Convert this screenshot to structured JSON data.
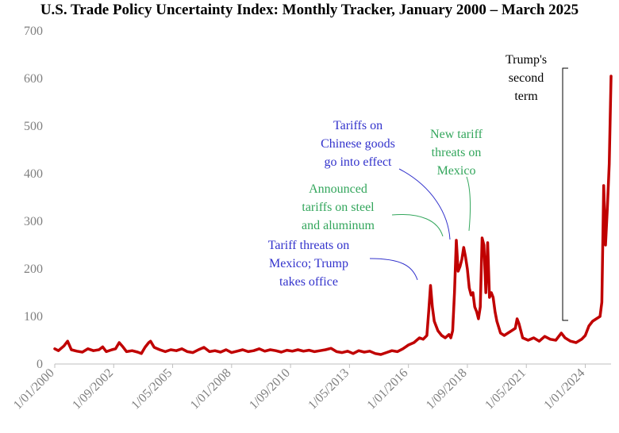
{
  "title": "U.S. Trade Policy Uncertainty Index: Monthly Tracker, January 2000 – March 2025",
  "colors": {
    "line": "#C00000",
    "blue_annotation": "#3333CC",
    "green_annotation": "#33A65C",
    "black_annotation": "#000000",
    "axis_text": "#7F7F7F"
  },
  "chart_data": {
    "type": "line",
    "title": "U.S. Trade Policy Uncertainty Index: Monthly Tracker, January 2000 – March 2025",
    "xlabel": "",
    "ylabel": "",
    "ylim": [
      0,
      700
    ],
    "yticks": [
      0,
      100,
      200,
      300,
      400,
      500,
      600,
      700
    ],
    "xticks": [
      "1/01/2000",
      "1/09/2002",
      "1/05/2005",
      "1/01/2008",
      "1/09/2010",
      "1/05/2013",
      "1/01/2016",
      "1/09/2018",
      "1/05/2021",
      "1/01/2024"
    ],
    "grid": false,
    "legend": "none",
    "series": [
      {
        "points": [
          [
            "2000-01",
            32
          ],
          [
            "2000-03",
            28
          ],
          [
            "2000-06",
            38
          ],
          [
            "2000-08",
            48
          ],
          [
            "2000-10",
            30
          ],
          [
            "2001-01",
            27
          ],
          [
            "2001-04",
            25
          ],
          [
            "2001-07",
            32
          ],
          [
            "2001-10",
            28
          ],
          [
            "2002-01",
            30
          ],
          [
            "2002-03",
            36
          ],
          [
            "2002-05",
            26
          ],
          [
            "2002-08",
            30
          ],
          [
            "2002-10",
            32
          ],
          [
            "2002-12",
            45
          ],
          [
            "2003-02",
            36
          ],
          [
            "2003-04",
            26
          ],
          [
            "2003-07",
            28
          ],
          [
            "2003-10",
            25
          ],
          [
            "2003-12",
            22
          ],
          [
            "2004-02",
            35
          ],
          [
            "2004-04",
            45
          ],
          [
            "2004-05",
            48
          ],
          [
            "2004-07",
            35
          ],
          [
            "2004-10",
            30
          ],
          [
            "2005-01",
            26
          ],
          [
            "2005-04",
            30
          ],
          [
            "2005-07",
            28
          ],
          [
            "2005-10",
            32
          ],
          [
            "2006-01",
            26
          ],
          [
            "2006-04",
            24
          ],
          [
            "2006-07",
            30
          ],
          [
            "2006-10",
            35
          ],
          [
            "2007-01",
            26
          ],
          [
            "2007-04",
            28
          ],
          [
            "2007-07",
            25
          ],
          [
            "2007-10",
            30
          ],
          [
            "2008-01",
            24
          ],
          [
            "2008-04",
            27
          ],
          [
            "2008-07",
            30
          ],
          [
            "2008-10",
            26
          ],
          [
            "2009-01",
            28
          ],
          [
            "2009-04",
            32
          ],
          [
            "2009-07",
            27
          ],
          [
            "2009-10",
            30
          ],
          [
            "2010-01",
            28
          ],
          [
            "2010-04",
            25
          ],
          [
            "2010-07",
            29
          ],
          [
            "2010-10",
            27
          ],
          [
            "2011-01",
            30
          ],
          [
            "2011-04",
            27
          ],
          [
            "2011-07",
            29
          ],
          [
            "2011-10",
            26
          ],
          [
            "2012-01",
            28
          ],
          [
            "2012-04",
            30
          ],
          [
            "2012-07",
            33
          ],
          [
            "2012-10",
            26
          ],
          [
            "2013-01",
            24
          ],
          [
            "2013-04",
            27
          ],
          [
            "2013-07",
            22
          ],
          [
            "2013-10",
            28
          ],
          [
            "2014-01",
            25
          ],
          [
            "2014-04",
            27
          ],
          [
            "2014-07",
            22
          ],
          [
            "2014-10",
            20
          ],
          [
            "2015-01",
            24
          ],
          [
            "2015-04",
            28
          ],
          [
            "2015-07",
            26
          ],
          [
            "2015-10",
            32
          ],
          [
            "2016-01",
            40
          ],
          [
            "2016-04",
            45
          ],
          [
            "2016-07",
            55
          ],
          [
            "2016-09",
            52
          ],
          [
            "2016-11",
            60
          ],
          [
            "2016-12",
            110
          ],
          [
            "2017-01",
            165
          ],
          [
            "2017-02",
            120
          ],
          [
            "2017-03",
            90
          ],
          [
            "2017-05",
            70
          ],
          [
            "2017-07",
            60
          ],
          [
            "2017-09",
            55
          ],
          [
            "2017-11",
            62
          ],
          [
            "2017-12",
            55
          ],
          [
            "2018-01",
            70
          ],
          [
            "2018-02",
            150
          ],
          [
            "2018-03",
            260
          ],
          [
            "2018-04",
            195
          ],
          [
            "2018-05",
            205
          ],
          [
            "2018-06",
            220
          ],
          [
            "2018-07",
            245
          ],
          [
            "2018-08",
            225
          ],
          [
            "2018-09",
            200
          ],
          [
            "2018-10",
            160
          ],
          [
            "2018-11",
            145
          ],
          [
            "2018-12",
            150
          ],
          [
            "2019-01",
            120
          ],
          [
            "2019-02",
            110
          ],
          [
            "2019-03",
            95
          ],
          [
            "2019-04",
            120
          ],
          [
            "2019-05",
            265
          ],
          [
            "2019-06",
            250
          ],
          [
            "2019-07",
            150
          ],
          [
            "2019-08",
            255
          ],
          [
            "2019-09",
            140
          ],
          [
            "2019-10",
            150
          ],
          [
            "2019-11",
            140
          ],
          [
            "2019-12",
            110
          ],
          [
            "2020-01",
            90
          ],
          [
            "2020-03",
            65
          ],
          [
            "2020-05",
            60
          ],
          [
            "2020-07",
            65
          ],
          [
            "2020-09",
            70
          ],
          [
            "2020-11",
            75
          ],
          [
            "2020-12",
            95
          ],
          [
            "2021-01",
            85
          ],
          [
            "2021-03",
            55
          ],
          [
            "2021-06",
            50
          ],
          [
            "2021-09",
            55
          ],
          [
            "2021-12",
            48
          ],
          [
            "2022-03",
            58
          ],
          [
            "2022-06",
            52
          ],
          [
            "2022-09",
            50
          ],
          [
            "2022-12",
            65
          ],
          [
            "2023-02",
            55
          ],
          [
            "2023-05",
            48
          ],
          [
            "2023-08",
            45
          ],
          [
            "2023-11",
            52
          ],
          [
            "2024-01",
            60
          ],
          [
            "2024-03",
            80
          ],
          [
            "2024-05",
            90
          ],
          [
            "2024-07",
            95
          ],
          [
            "2024-09",
            100
          ],
          [
            "2024-10",
            130
          ],
          [
            "2024-11",
            375
          ],
          [
            "2024-12",
            250
          ],
          [
            "2025-01",
            330
          ],
          [
            "2025-02",
            420
          ],
          [
            "2025-03",
            605
          ]
        ]
      }
    ],
    "annotations": [
      {
        "id": "tariff-threats-mexico",
        "lines": [
          "Tariff threats on",
          "Mexico; Trump",
          "takes office"
        ],
        "color": "blue"
      },
      {
        "id": "tariffs-chinese-goods",
        "lines": [
          "Tariffs on",
          "Chinese goods",
          "go into effect"
        ],
        "color": "blue"
      },
      {
        "id": "steel-aluminum",
        "lines": [
          "Announced",
          "tariffs on steel",
          "and aluminum"
        ],
        "color": "green"
      },
      {
        "id": "new-tariff-mexico",
        "lines": [
          "New tariff",
          "threats on",
          "Mexico"
        ],
        "color": "green"
      },
      {
        "id": "trump-second-term",
        "lines": [
          "Trump's",
          "second",
          "term"
        ],
        "color": "black"
      }
    ]
  }
}
